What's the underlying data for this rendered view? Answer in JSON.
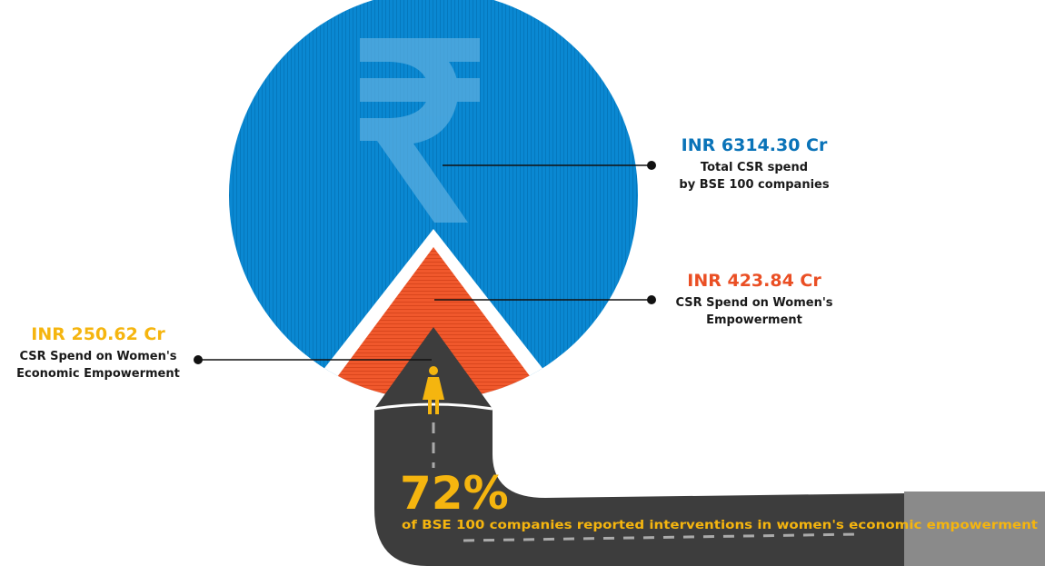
{
  "callouts": [
    {
      "amount": "INR 6314.30 Cr",
      "lines": [
        "Total CSR spend",
        "by BSE 100 companies"
      ]
    },
    {
      "amount": "INR 423.84 Cr",
      "lines": [
        "CSR Spend on Women's",
        "Empowerment"
      ]
    },
    {
      "amount": "INR 250.62 Cr",
      "lines": [
        "CSR Spend on Women's",
        "Economic Empowerment"
      ]
    }
  ],
  "stat": {
    "value": "72%",
    "text": "of BSE 100 companies reported interventions in women's economic empowerment"
  }
}
